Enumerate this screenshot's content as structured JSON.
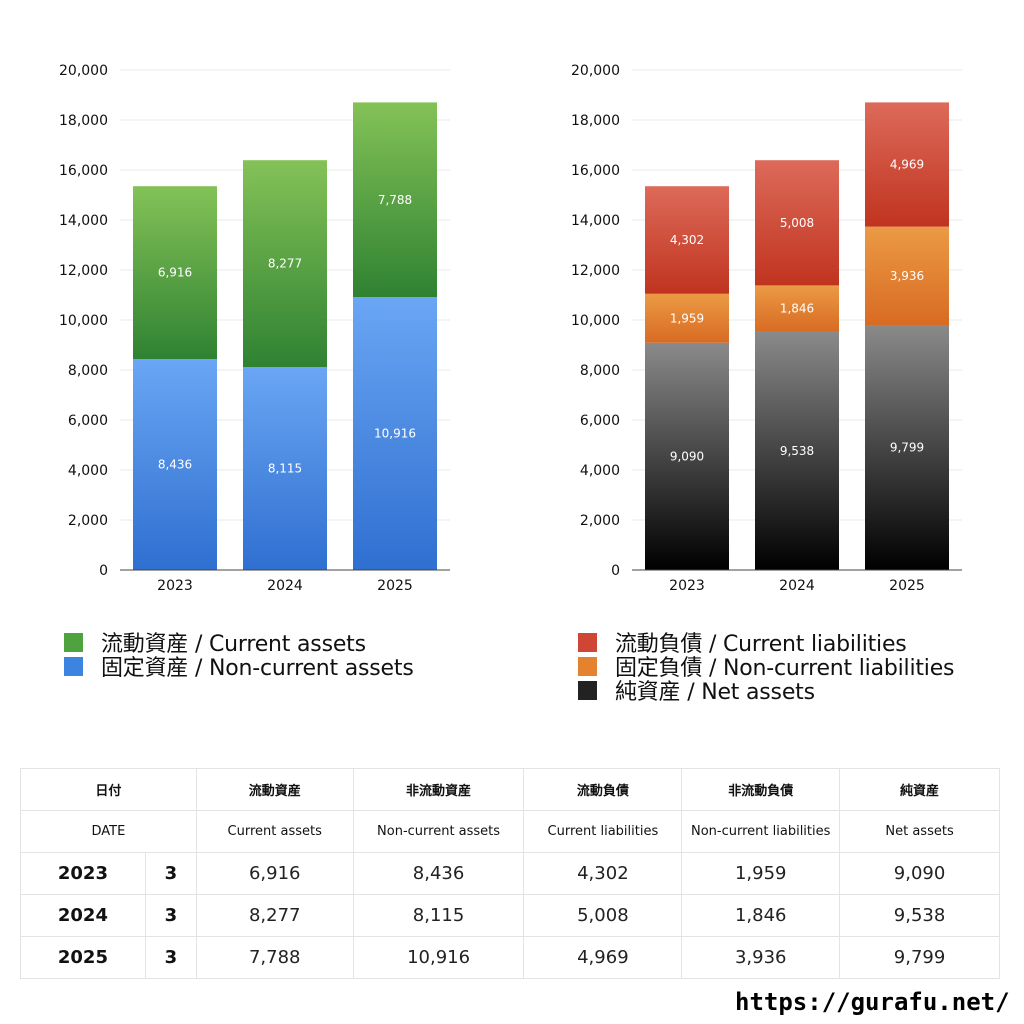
{
  "chart_data": [
    {
      "type": "bar",
      "stacked": true,
      "categories": [
        "2023",
        "2024",
        "2025"
      ],
      "series": [
        {
          "name": "固定資産 / Non-current assets",
          "values": [
            8436,
            8115,
            10916
          ],
          "color": "#2f6fd0",
          "color_top": "#6aa6f4"
        },
        {
          "name": "流動資産 / Current assets",
          "values": [
            6916,
            8277,
            7788
          ],
          "color": "#2f8232",
          "color_top": "#84c257"
        }
      ],
      "ylim": [
        0,
        20000
      ],
      "yticks": [
        "0",
        "2,000",
        "4,000",
        "6,000",
        "8,000",
        "10,000",
        "12,000",
        "14,000",
        "16,000",
        "18,000",
        "20,000"
      ],
      "grid": true,
      "legend_position": "bottom-left"
    },
    {
      "type": "bar",
      "stacked": true,
      "categories": [
        "2023",
        "2024",
        "2025"
      ],
      "series": [
        {
          "name": "純資産 / Net assets",
          "values": [
            9090,
            9538,
            9799
          ],
          "color": "#000000",
          "color_top": "#8a8a8a"
        },
        {
          "name": "固定負債 / Non-current liabilities",
          "values": [
            1959,
            1846,
            3936
          ],
          "color": "#d86b22",
          "color_top": "#eb9a45"
        },
        {
          "name": "流動負債 / Current liabilities",
          "values": [
            4302,
            5008,
            4969
          ],
          "color": "#c0341f",
          "color_top": "#dd6a5a"
        }
      ],
      "ylim": [
        0,
        20000
      ],
      "yticks": [
        "0",
        "2,000",
        "4,000",
        "6,000",
        "8,000",
        "10,000",
        "12,000",
        "14,000",
        "16,000",
        "18,000",
        "20,000"
      ],
      "grid": true,
      "legend_position": "bottom-left"
    }
  ],
  "legend_left": [
    {
      "label": "流動資産 / Current assets",
      "color": "#4ea340"
    },
    {
      "label": "固定資産 / Non-current assets",
      "color": "#3c84df"
    }
  ],
  "legend_right": [
    {
      "label": "流動負債 / Current liabilities",
      "color": "#cf4634"
    },
    {
      "label": "固定負債 / Non-current liabilities",
      "color": "#e4822f"
    },
    {
      "label": "純資産 / Net assets",
      "color": "#222222"
    }
  ],
  "table": {
    "headers_jp": [
      "日付",
      "流動資産",
      "非流動資産",
      "流動負債",
      "非流動負債",
      "純資産"
    ],
    "headers_en": [
      "DATE",
      "Current assets",
      "Non-current assets",
      "Current liabilities",
      "Non-current liabilities",
      "Net assets"
    ],
    "rows": [
      {
        "year": "2023",
        "month": "3",
        "values": [
          "6,916",
          "8,436",
          "4,302",
          "1,959",
          "9,090"
        ]
      },
      {
        "year": "2024",
        "month": "3",
        "values": [
          "8,277",
          "8,115",
          "5,008",
          "1,846",
          "9,538"
        ]
      },
      {
        "year": "2025",
        "month": "3",
        "values": [
          "7,788",
          "10,916",
          "4,969",
          "3,936",
          "9,799"
        ]
      }
    ]
  },
  "footer": {
    "url": "https://gurafu.net/"
  }
}
